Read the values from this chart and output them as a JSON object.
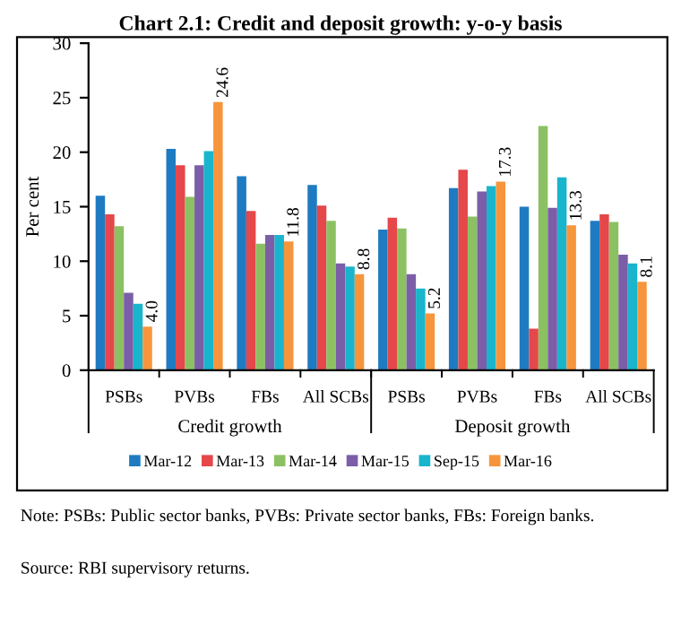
{
  "chart_data": {
    "type": "bar",
    "title": "Chart 2.1: Credit and deposit growth: y-o-y basis",
    "ylabel": "Per cent",
    "categories": [
      "PSBs",
      "PVBs",
      "FBs",
      "All SCBs",
      "PSBs",
      "PVBs",
      "FBs",
      "All SCBs"
    ],
    "series": [
      {
        "name": "Mar-12",
        "color": "#1f7bc1",
        "values": [
          16.0,
          20.3,
          17.8,
          17.0,
          12.9,
          16.7,
          15.0,
          13.7
        ]
      },
      {
        "name": "Mar-13",
        "color": "#e5474a",
        "values": [
          14.3,
          18.8,
          14.6,
          15.1,
          14.0,
          18.4,
          3.8,
          14.3
        ]
      },
      {
        "name": "Mar-14",
        "color": "#8cc163",
        "values": [
          13.2,
          15.9,
          11.6,
          13.7,
          13.0,
          14.1,
          22.4,
          13.6
        ]
      },
      {
        "name": "Mar-15",
        "color": "#7b5ea7",
        "values": [
          7.1,
          18.8,
          12.4,
          9.8,
          8.8,
          16.4,
          14.9,
          10.6
        ]
      },
      {
        "name": "Sep-15",
        "color": "#19b5cc",
        "values": [
          6.1,
          20.1,
          12.4,
          9.5,
          7.5,
          16.9,
          17.7,
          9.8
        ]
      },
      {
        "name": "Mar-16",
        "color": "#f7953d",
        "values": [
          4.0,
          24.6,
          11.8,
          8.8,
          5.2,
          17.3,
          13.3,
          8.1
        ],
        "value_labels": [
          "4.0",
          "24.6",
          "11.8",
          "8.8",
          "5.2",
          "17.3",
          "13.3",
          "8.1"
        ]
      }
    ],
    "ylim": [
      0,
      30
    ],
    "yticks": [
      0,
      5,
      10,
      15,
      20,
      25,
      30
    ],
    "grid": false,
    "legend": "bottom",
    "annotations": [
      "Credit growth",
      "Deposit growth",
      "Note: PSBs: Public sector banks, PVBs: Private sector banks, FBs: Foreign banks.",
      "Source: RBI supervisory returns."
    ]
  }
}
